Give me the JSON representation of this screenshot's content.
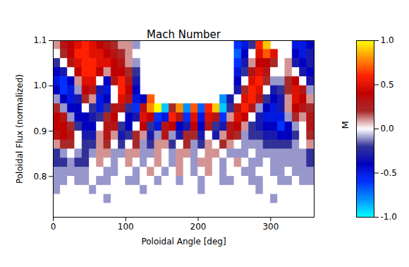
{
  "chart_data": {
    "type": "heatmap",
    "title": "Mach Number",
    "xlabel": "Poloidal Angle [deg]",
    "ylabel": "Poloidal Flux (normalized)",
    "xlim": [
      0,
      360
    ],
    "ylim": [
      0.71,
      1.1
    ],
    "xticks": [
      0,
      100,
      200,
      300
    ],
    "yticks": [
      0.8,
      0.9,
      {
        "value": 1,
        "label": "1.0"
      },
      1.1
    ],
    "x_edges": [
      0,
      10,
      20,
      30,
      40,
      50,
      60,
      70,
      80,
      90,
      100,
      110,
      120,
      130,
      140,
      150,
      160,
      170,
      180,
      190,
      200,
      210,
      220,
      230,
      240,
      250,
      260,
      270,
      280,
      290,
      300,
      310,
      320,
      330,
      340,
      350,
      360
    ],
    "y_edges": [
      1.1,
      1.08,
      1.06,
      1.04,
      1.02,
      1.0,
      0.98,
      0.96,
      0.94,
      0.92,
      0.9,
      0.88,
      0.86,
      0.84,
      0.82,
      0.8,
      0.78,
      0.76,
      0.74,
      0.72
    ],
    "cells": [
      [
        0.1,
        0.3,
        0.4,
        0.5,
        0.6,
        0.5,
        0.4,
        0.3,
        0.2,
        0.1,
        0.1,
        -0.1,
        null,
        null,
        null,
        null,
        null,
        null,
        null,
        null,
        null,
        null,
        null,
        null,
        null,
        -0.6,
        -0.5,
        -0.2,
        0.6,
        0.9,
        null,
        null,
        null,
        -0.5,
        -0.5,
        -0.4
      ],
      [
        0.0,
        0.2,
        0.4,
        0.6,
        0.6,
        0.5,
        0.5,
        0.4,
        0.3,
        0.2,
        0.1,
        0.0,
        null,
        null,
        null,
        null,
        null,
        null,
        null,
        null,
        null,
        null,
        null,
        null,
        null,
        -0.7,
        -0.4,
        0.0,
        0.5,
        0.7,
        0.5,
        null,
        null,
        -0.4,
        -0.5,
        -0.3
      ],
      [
        -0.2,
        0.0,
        0.3,
        0.5,
        0.6,
        0.6,
        0.5,
        0.5,
        0.4,
        0.3,
        0.1,
        -0.1,
        null,
        null,
        null,
        null,
        null,
        null,
        null,
        null,
        null,
        null,
        null,
        null,
        null,
        -0.6,
        -0.3,
        0.1,
        0.4,
        0.4,
        0.2,
        null,
        0.1,
        -0.3,
        -0.4,
        -0.3
      ],
      [
        -0.4,
        -0.3,
        0.0,
        0.4,
        0.6,
        0.6,
        0.4,
        0.1,
        0.4,
        0.4,
        0.2,
        -0.2,
        null,
        null,
        null,
        null,
        null,
        null,
        null,
        null,
        null,
        null,
        null,
        null,
        null,
        -0.5,
        -0.2,
        0.3,
        0.5,
        0.3,
        0.0,
        0.0,
        0.1,
        0.0,
        -0.3,
        -0.4
      ],
      [
        -0.5,
        -0.6,
        -0.4,
        0.1,
        0.5,
        0.5,
        0.0,
        -0.4,
        0.3,
        0.6,
        0.3,
        -0.3,
        null,
        null,
        null,
        null,
        null,
        null,
        null,
        null,
        null,
        null,
        null,
        null,
        null,
        -0.4,
        0.0,
        0.5,
        0.6,
        0.2,
        -0.1,
        -0.1,
        0.2,
        0.4,
        0.0,
        -0.3
      ],
      [
        -0.4,
        -0.6,
        -0.5,
        -0.1,
        0.4,
        0.3,
        -0.3,
        -0.5,
        0.0,
        0.6,
        0.4,
        -0.4,
        null,
        null,
        null,
        null,
        null,
        null,
        null,
        null,
        null,
        null,
        null,
        null,
        null,
        -0.3,
        0.2,
        0.6,
        0.5,
        0.0,
        -0.3,
        -0.2,
        0.2,
        0.5,
        0.3,
        -0.1
      ],
      [
        -0.1,
        -0.4,
        -0.5,
        -0.3,
        0.2,
        0.1,
        -0.5,
        -0.4,
        0.0,
        0.5,
        0.3,
        -0.5,
        -0.4,
        0.7,
        null,
        null,
        null,
        null,
        null,
        null,
        null,
        null,
        null,
        -0.8,
        -0.3,
        0.0,
        0.5,
        0.6,
        0.3,
        -0.2,
        -0.4,
        -0.3,
        0.1,
        0.5,
        0.4,
        0.1
      ],
      [
        0.2,
        -0.1,
        -0.4,
        -0.4,
        0.0,
        -0.2,
        -0.5,
        -0.2,
        0.3,
        0.3,
        -0.2,
        -0.6,
        0.3,
        0.8,
        1.0,
        -0.9,
        0.2,
        0.8,
        -0.8,
        0.7,
        -0.7,
        0.6,
        0.9,
        -0.9,
        -0.2,
        0.3,
        0.6,
        0.3,
        -0.1,
        -0.4,
        -0.5,
        -0.3,
        0.1,
        0.4,
        0.3,
        0.2
      ],
      [
        0.4,
        0.3,
        -0.1,
        -0.4,
        -0.4,
        -0.3,
        -0.2,
        0.2,
        0.4,
        0.0,
        -0.4,
        -0.3,
        0.5,
        0.4,
        -0.6,
        -0.5,
        0.6,
        0.3,
        -0.6,
        0.5,
        -0.5,
        0.5,
        0.3,
        -0.6,
        0.1,
        0.5,
        0.4,
        0.0,
        -0.3,
        -0.5,
        -0.5,
        -0.5,
        -0.1,
        0.2,
        0.1,
        0.3
      ],
      [
        0.4,
        0.4,
        0.2,
        -0.2,
        -0.4,
        -0.4,
        0.0,
        0.3,
        0.3,
        -0.2,
        -0.4,
        0.0,
        0.4,
        -0.2,
        -0.5,
        0.3,
        0.4,
        -0.4,
        -0.3,
        0.4,
        -0.4,
        0.3,
        -0.2,
        -0.3,
        0.3,
        0.4,
        0.1,
        -0.2,
        -0.3,
        -0.4,
        -0.4,
        -0.6,
        -0.4,
        -0.1,
        0.0,
        0.3
      ],
      [
        0.3,
        0.4,
        0.3,
        0.0,
        -0.3,
        -0.3,
        0.1,
        0.3,
        0.1,
        -0.3,
        -0.2,
        0.2,
        0.1,
        -0.3,
        -0.1,
        0.3,
        -0.1,
        -0.3,
        0.2,
        0.2,
        -0.3,
        0.0,
        -0.3,
        0.1,
        0.3,
        0.2,
        -0.1,
        -0.2,
        -0.2,
        -0.3,
        -0.3,
        -0.4,
        -0.4,
        -0.2,
        0.0,
        0.2
      ],
      [
        0.1,
        0.2,
        0.2,
        0.0,
        -0.2,
        -0.2,
        0.1,
        0.2,
        0.0,
        -0.2,
        0.0,
        0.2,
        -0.1,
        -0.2,
        0.1,
        0.1,
        -0.2,
        0.0,
        0.2,
        -0.1,
        -0.2,
        0.1,
        0.0,
        0.2,
        0.1,
        0.0,
        -0.1,
        -0.1,
        -0.1,
        -0.2,
        -0.2,
        -0.2,
        -0.2,
        -0.1,
        0.0,
        0.1
      ],
      [
        -0.2,
        -0.1,
        0.0,
        -0.1,
        -0.2,
        -0.1,
        0.1,
        0.1,
        -0.1,
        -0.1,
        0.1,
        0.1,
        -0.1,
        -0.1,
        0.1,
        0.0,
        -0.1,
        0.1,
        0.1,
        -0.1,
        0.0,
        0.1,
        0.1,
        0.0,
        -0.1,
        -0.1,
        -0.1,
        0.0,
        -0.1,
        -0.1,
        -0.1,
        -0.1,
        -0.1,
        -0.1,
        -0.1,
        -0.2
      ],
      [
        -0.2,
        -0.2,
        -0.1,
        -0.2,
        -0.2,
        0.0,
        0.1,
        0.0,
        -0.1,
        0.0,
        0.1,
        0.0,
        -0.1,
        0.0,
        0.1,
        0.0,
        -0.1,
        0.1,
        0.0,
        -0.1,
        0.1,
        0.1,
        0.0,
        -0.1,
        0.0,
        0.1,
        0.0,
        -0.1,
        -0.1,
        0.0,
        -0.1,
        -0.1,
        -0.1,
        -0.1,
        -0.1,
        -0.2
      ],
      [
        -0.1,
        -0.1,
        -0.1,
        -0.1,
        -0.1,
        0.0,
        0.0,
        -0.1,
        -0.1,
        0.0,
        0.0,
        -0.1,
        0.0,
        0.1,
        0.0,
        -0.1,
        0.0,
        0.1,
        0.0,
        -0.1,
        0.0,
        0.1,
        0.0,
        -0.1,
        0.0,
        0.0,
        -0.1,
        -0.1,
        0.0,
        0.0,
        -0.1,
        -0.1,
        0.0,
        -0.1,
        -0.1,
        -0.1
      ],
      [
        -0.1,
        -0.1,
        0.0,
        -0.1,
        -0.1,
        0.0,
        -0.1,
        -0.1,
        0.0,
        0.0,
        -0.1,
        -0.1,
        0.0,
        0.0,
        -0.1,
        0.0,
        0.0,
        -0.1,
        0.0,
        0.0,
        -0.1,
        0.0,
        0.0,
        -0.1,
        -0.1,
        0.0,
        0.0,
        -0.1,
        -0.1,
        0.0,
        0.0,
        -0.1,
        -0.1,
        0.0,
        -0.1,
        -0.1
      ],
      [
        -0.1,
        0.0,
        0.0,
        0.0,
        0.0,
        -0.1,
        0.0,
        0.0,
        0.0,
        0.0,
        0.0,
        0.0,
        -0.1,
        0.0,
        0.0,
        0.0,
        0.0,
        0.0,
        0.0,
        0.0,
        -0.1,
        0.0,
        0.0,
        0.0,
        0.0,
        0.0,
        0.0,
        0.0,
        -0.1,
        0.0,
        0.0,
        0.0,
        0.0,
        0.0,
        0.0,
        0.0
      ],
      [
        0.0,
        0.0,
        0.0,
        0.0,
        0.0,
        0.0,
        0.0,
        -0.1,
        0.0,
        0.0,
        0.0,
        0.0,
        0.0,
        0.0,
        0.0,
        0.0,
        0.0,
        0.0,
        0.0,
        0.0,
        0.0,
        0.0,
        0.0,
        0.0,
        0.0,
        0.0,
        0.0,
        0.0,
        0.0,
        0.0,
        -0.1,
        0.0,
        0.0,
        0.0,
        0.0,
        0.0
      ],
      [
        0.0,
        0.0,
        0.0,
        0.0,
        0.0,
        0.0,
        0.0,
        0.0,
        0.0,
        0.0,
        0.0,
        0.0,
        0.0,
        0.0,
        0.0,
        0.0,
        0.0,
        0.0,
        0.0,
        0.0,
        0.0,
        0.0,
        0.0,
        0.0,
        0.0,
        0.0,
        0.0,
        0.0,
        0.0,
        0.0,
        0.0,
        0.0,
        0.0,
        0.0,
        0.0,
        0.0
      ]
    ],
    "colorbar": {
      "label": "M",
      "range": [
        -1,
        1
      ],
      "ticks": [
        {
          "value": -1,
          "label": "-1.0"
        },
        -0.5,
        {
          "value": 0,
          "label": "0.0"
        },
        0.5,
        {
          "value": 1,
          "label": "1.0"
        }
      ]
    }
  }
}
